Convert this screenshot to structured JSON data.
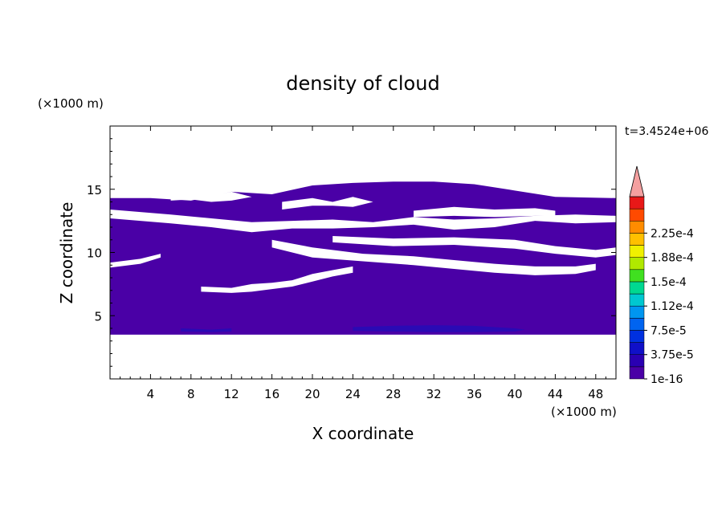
{
  "chart_data": {
    "type": "heatmap",
    "title": "density of cloud",
    "xlabel": "X coordinate",
    "ylabel": "Z coordinate",
    "x_unit": "(×1000 m)",
    "y_unit": "(×1000 m)",
    "time_label": "t=3.4524e+06",
    "xlim": [
      0,
      50
    ],
    "ylim": [
      0,
      20
    ],
    "x_ticks": [
      4,
      8,
      12,
      16,
      20,
      24,
      28,
      32,
      36,
      40,
      44,
      48
    ],
    "y_ticks": [
      5,
      10,
      15
    ],
    "x_tick_labels": [
      "4",
      "8",
      "12",
      "16",
      "20",
      "24",
      "28",
      "32",
      "36",
      "40",
      "44",
      "48"
    ],
    "y_tick_labels": [
      "5",
      "10",
      "15"
    ],
    "grid": false,
    "colorbar": {
      "levels": [
        1e-16,
        1.875e-05,
        3.75e-05,
        5.625e-05,
        7.5e-05,
        9.375e-05,
        0.0001125,
        0.00013125,
        0.00015,
        0.00016875,
        0.0001875,
        0.00020625,
        0.000225,
        0.00024375
      ],
      "colors": [
        "#4a00a6",
        "#2a00b2",
        "#1010c8",
        "#0030e0",
        "#0064f0",
        "#0096f0",
        "#00c8d0",
        "#00d890",
        "#40e020",
        "#b0e800",
        "#f0f000",
        "#ffc000",
        "#ff8c00",
        "#ff4a00",
        "#e81818"
      ],
      "labels": [
        "1e-16",
        "3.75e-5",
        "7.5e-5",
        "1.12e-4",
        "1.5e-4",
        "1.88e-4",
        "2.25e-4"
      ],
      "label_values": [
        1e-16,
        3.75e-05,
        7.5e-05,
        0.0001125,
        0.00015,
        0.0001875,
        0.000225
      ],
      "overflow_color": "#f4a0a0"
    },
    "field": {
      "description_values": "cloud density filled contours, near 1e-16 level in the band z≈3.5–15.5 km; small 1.9e-5 patches near z≈4 km",
      "fill_color": "#4a00a6",
      "low_patch_color": "#2a0ab4",
      "cloud_base_z": 3.5,
      "cloud_top_z": [
        14.3,
        14.3,
        14.1,
        14.8,
        14.6,
        15.3,
        15.5,
        15.6,
        15.6,
        15.4,
        14.9,
        14.4,
        14.3
      ],
      "cloud_top_x": [
        0,
        4,
        8,
        12,
        16,
        20,
        24,
        28,
        32,
        36,
        40,
        44,
        50
      ]
    }
  }
}
